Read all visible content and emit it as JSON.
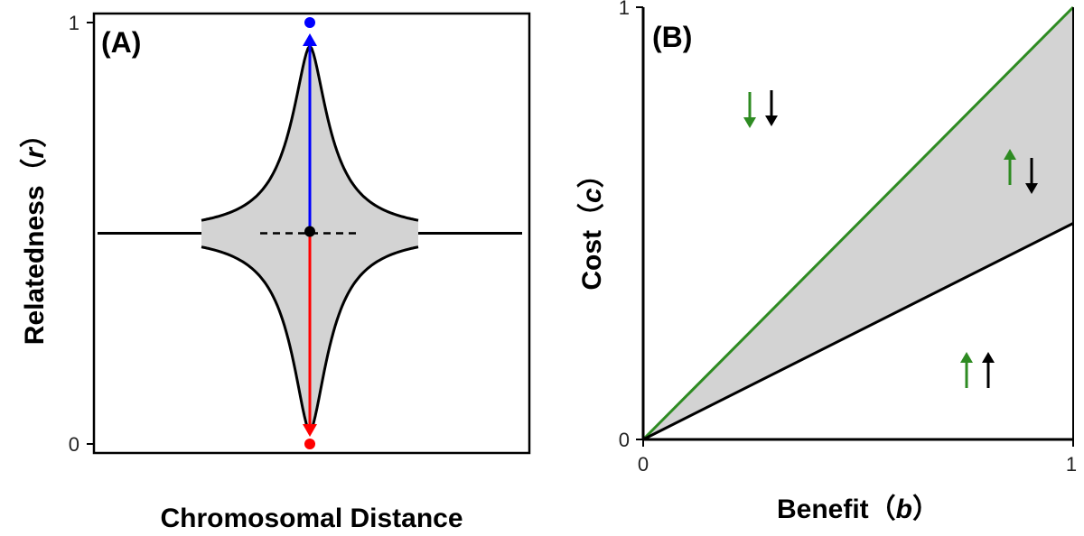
{
  "colors": {
    "shade": "#d3d3d3",
    "blue": "#0000ff",
    "red": "#ff0000",
    "green": "#2e8b22",
    "black": "#000000"
  },
  "chart_data": [
    {
      "panel": "(A)",
      "type": "line",
      "xlabel": "Chromosomal Distance",
      "ylabel": "Relatedness",
      "ylabel_symbol": "r",
      "ylim": [
        0,
        1
      ],
      "yticks": [
        "0",
        "1"
      ],
      "baseline_r": 0.5,
      "shaded_envelope": true,
      "arrows": [
        {
          "color": "blue",
          "from_r": 0.5,
          "to_r": 1
        },
        {
          "color": "red",
          "from_r": 0.5,
          "to_r": 0
        }
      ],
      "points": [
        {
          "color": "blue",
          "r": 1
        },
        {
          "color": "black",
          "r": 0.5
        },
        {
          "color": "red",
          "r": 0
        }
      ],
      "grid": false
    },
    {
      "panel": "(B)",
      "type": "line",
      "xlabel": "Benefit",
      "xlabel_symbol": "b",
      "ylabel": "Cost",
      "ylabel_symbol": "c",
      "xlim": [
        0,
        1
      ],
      "ylim": [
        0,
        1
      ],
      "xticks": [
        "0",
        "1"
      ],
      "yticks": [
        "0",
        "1"
      ],
      "series": [
        {
          "color": "green",
          "x": [
            0,
            1
          ],
          "y": [
            0,
            1
          ]
        },
        {
          "color": "black",
          "x": [
            0,
            1
          ],
          "y": [
            0,
            0.5
          ]
        }
      ],
      "shaded_region": "between c = b/2 and c = b",
      "region_arrows": [
        {
          "position": "upper-left",
          "green": "down",
          "black": "down"
        },
        {
          "position": "right-middle",
          "green": "up",
          "black": "down"
        },
        {
          "position": "lower-right",
          "green": "up",
          "black": "up"
        }
      ],
      "grid": false
    }
  ]
}
